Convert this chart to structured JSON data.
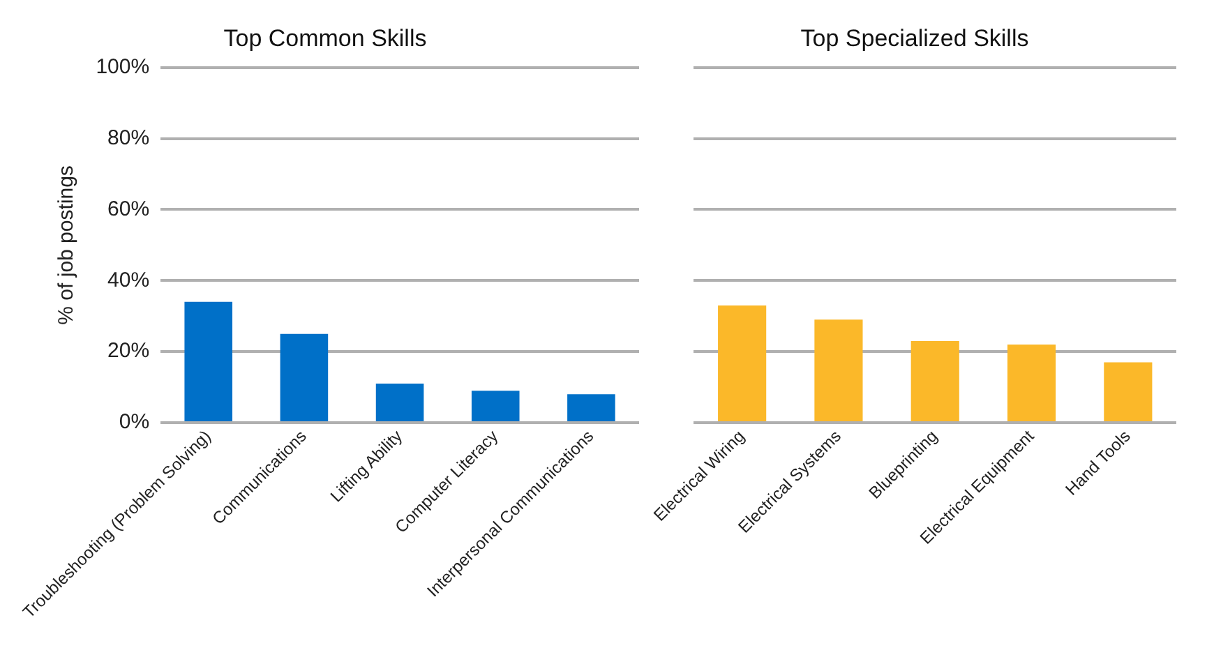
{
  "chart_data": [
    {
      "type": "bar",
      "title": "Top Common Skills",
      "ylabel": "% of job postings",
      "categories": [
        "Troubleshooting (Problem Solving)",
        "Communications",
        "Lifting Ability",
        "Computer Literacy",
        "Interpersonal Communications"
      ],
      "values": [
        34,
        25,
        11,
        9,
        8
      ],
      "color": "#0070c8",
      "ylim": [
        0,
        100
      ],
      "yticks": [
        {
          "value": 0,
          "label": "0%"
        },
        {
          "value": 20,
          "label": "20%"
        },
        {
          "value": 40,
          "label": "40%"
        },
        {
          "value": 60,
          "label": "60%"
        },
        {
          "value": 80,
          "label": "80%"
        },
        {
          "value": 100,
          "label": "100%"
        }
      ],
      "grid": "y",
      "legend": false
    },
    {
      "type": "bar",
      "title": "Top Specialized Skills",
      "categories": [
        "Electrical Wiring",
        "Electrical Systems",
        "Blueprinting",
        "Electrical Equipment",
        "Hand Tools"
      ],
      "values": [
        33,
        29,
        23,
        22,
        17
      ],
      "color": "#fbb829",
      "ylim": [
        0,
        100
      ],
      "yticks": [
        {
          "value": 0,
          "label": null
        },
        {
          "value": 20,
          "label": null
        },
        {
          "value": 40,
          "label": null
        },
        {
          "value": 60,
          "label": null
        },
        {
          "value": 80,
          "label": null
        },
        {
          "value": 100,
          "label": null
        }
      ],
      "tick_labels": "x",
      "grid": "y",
      "legend": false
    }
  ]
}
